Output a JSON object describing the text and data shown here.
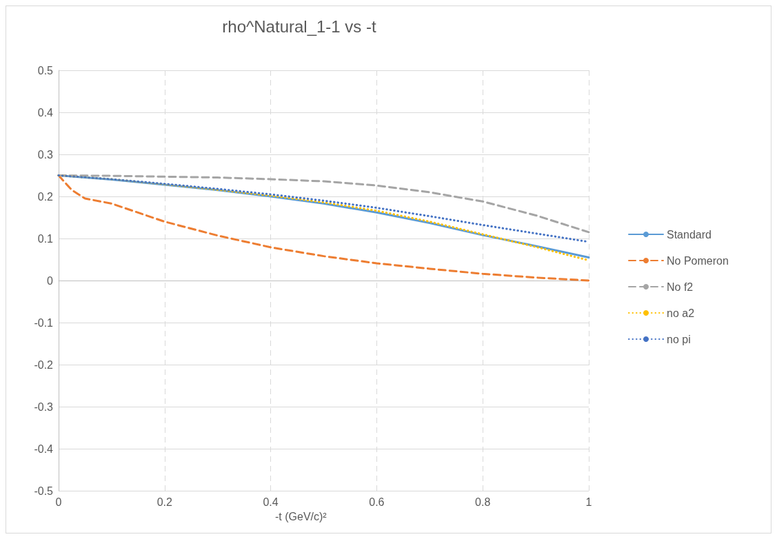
{
  "chart_data": {
    "type": "line",
    "title": "rho^Natural_1-1 vs -t",
    "xlabel": "-t (GeV/c)²",
    "xlim": [
      0,
      1
    ],
    "xticks": [
      0,
      0.2,
      0.4,
      0.6,
      0.8,
      1
    ],
    "ylim": [
      -0.5,
      0.5
    ],
    "yticks": [
      -0.5,
      -0.4,
      -0.3,
      -0.2,
      -0.1,
      0,
      0.1,
      0.2,
      0.3,
      0.4,
      0.5
    ],
    "grid": true,
    "legend": "right",
    "marker": "none",
    "x": [
      0,
      0.1,
      0.2,
      0.3,
      0.4,
      0.5,
      0.6,
      0.7,
      0.8,
      0.9,
      1
    ],
    "series": [
      {
        "name": "Standard",
        "color": "#5b9bd5",
        "line_style": "solid",
        "values": [
          0.25,
          0.24,
          0.228,
          0.215,
          0.2,
          0.183,
          0.162,
          0.137,
          0.108,
          0.082,
          0.055
        ]
      },
      {
        "name": "No Pomeron",
        "color": "#ed7d31",
        "line_style": "dashed",
        "x": [
          0,
          0.025,
          0.05,
          0.1,
          0.2,
          0.3,
          0.4,
          0.5,
          0.6,
          0.7,
          0.8,
          0.9,
          1
        ],
        "values": [
          0.25,
          0.215,
          0.195,
          0.183,
          0.14,
          0.107,
          0.079,
          0.058,
          0.041,
          0.028,
          0.016,
          0.007,
          0
        ]
      },
      {
        "name": "No f2",
        "color": "#a5a5a5",
        "line_style": "dashed",
        "values": [
          0.25,
          0.249,
          0.247,
          0.245,
          0.241,
          0.236,
          0.226,
          0.21,
          0.188,
          0.155,
          0.115
        ]
      },
      {
        "name": "no a2",
        "color": "#ffc000",
        "line_style": "dotted",
        "values": [
          0.25,
          0.241,
          0.229,
          0.216,
          0.202,
          0.186,
          0.166,
          0.14,
          0.11,
          0.08,
          0.048
        ]
      },
      {
        "name": "no pi",
        "color": "#4472c4",
        "line_style": "dotted",
        "values": [
          0.25,
          0.241,
          0.23,
          0.218,
          0.205,
          0.19,
          0.173,
          0.153,
          0.132,
          0.112,
          0.092
        ]
      }
    ]
  }
}
